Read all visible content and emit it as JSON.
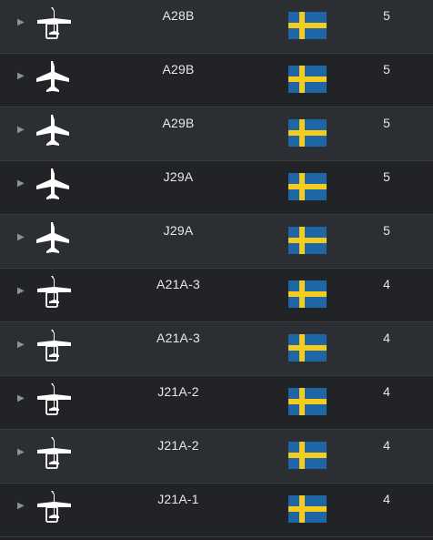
{
  "colors": {
    "row_odd": "#2b2e33",
    "row_even": "#212327",
    "divider": "#3a3d43",
    "text": "#e8e9eb",
    "flag_blue": "#1f66a7",
    "flag_yellow": "#f6cc1b"
  },
  "rows": [
    {
      "name": "A28B",
      "rank": "5",
      "icon": "attacker-icon",
      "flag": "sweden-flag-icon"
    },
    {
      "name": "A29B",
      "rank": "5",
      "icon": "jet-fighter-icon",
      "flag": "sweden-flag-icon"
    },
    {
      "name": "A29B",
      "rank": "5",
      "icon": "jet-fighter-icon",
      "flag": "sweden-flag-icon"
    },
    {
      "name": "J29A",
      "rank": "5",
      "icon": "jet-fighter-icon",
      "flag": "sweden-flag-icon"
    },
    {
      "name": "J29A",
      "rank": "5",
      "icon": "jet-fighter-icon",
      "flag": "sweden-flag-icon"
    },
    {
      "name": "A21A-3",
      "rank": "4",
      "icon": "attacker-icon",
      "flag": "sweden-flag-icon"
    },
    {
      "name": "A21A-3",
      "rank": "4",
      "icon": "attacker-icon",
      "flag": "sweden-flag-icon"
    },
    {
      "name": "J21A-2",
      "rank": "4",
      "icon": "attacker-icon",
      "flag": "sweden-flag-icon"
    },
    {
      "name": "J21A-2",
      "rank": "4",
      "icon": "attacker-icon",
      "flag": "sweden-flag-icon"
    },
    {
      "name": "J21A-1",
      "rank": "4",
      "icon": "attacker-icon",
      "flag": "sweden-flag-icon"
    }
  ]
}
